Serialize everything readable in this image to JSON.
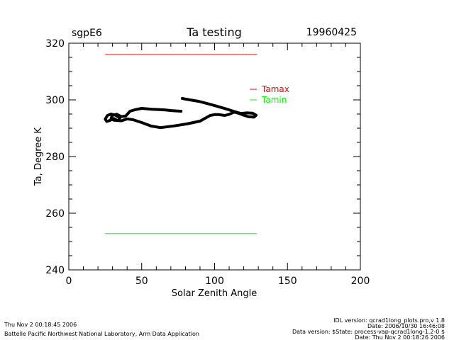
{
  "header": {
    "site": "sgpE6",
    "date": "19960425"
  },
  "footer": {
    "timestamp": "Thu Nov  2 00:18:45 2006",
    "org": "Battelle Pacific Northwest National Laboratory, Arm Data Application",
    "idl_version": "IDL version: qcrad1long_plots.pro,v 1.8",
    "idl_date": "Date: 2006/10/30 16:46:08",
    "data_version": "Data version: $State: process-vap-qcrad1long-1.2-0 $",
    "data_date": "Date: Thu Nov  2 00:18:26 2006"
  },
  "chart_data": {
    "type": "line",
    "title": "Ta testing",
    "xlabel": "Solar Zenith Angle",
    "ylabel": "Ta, Degree K",
    "xlim": [
      0,
      200
    ],
    "ylim": [
      240,
      320
    ],
    "xticks": [
      "0",
      "50",
      "100",
      "150",
      "200"
    ],
    "yticks": [
      "240",
      "260",
      "280",
      "300",
      "320"
    ],
    "legend_placement": "top-right",
    "colors": {
      "tamax": "#ff0000",
      "tamin": "#00ff00",
      "ta": "#000000"
    },
    "series": [
      {
        "name": "Tamax",
        "x": [
          25,
          129
        ],
        "y": [
          316,
          316
        ]
      },
      {
        "name": "Tamin",
        "x": [
          25,
          129
        ],
        "y": [
          252.8,
          252.8
        ]
      },
      {
        "name": "Ta",
        "x": [
          77.8,
          83,
          89,
          95,
          102,
          108,
          113.4,
          118,
          122,
          126,
          128.5,
          127,
          123,
          120,
          117,
          113.4,
          110,
          107,
          103,
          100,
          97,
          90,
          80.8,
          72,
          63,
          56.5,
          50,
          44,
          40,
          36,
          33,
          31,
          28,
          26,
          25,
          26.5,
          29,
          32,
          35,
          34,
          31,
          29,
          30,
          33,
          36,
          39,
          42,
          46,
          50,
          57,
          65,
          71,
          77
        ],
        "y": [
          300.5,
          300,
          299.5,
          298.7,
          297.7,
          296.8,
          295.9,
          295.2,
          295.4,
          295.3,
          294.6,
          293.9,
          294.1,
          294.6,
          295.2,
          295.7,
          294.9,
          294.5,
          294.8,
          294.8,
          294.5,
          292.5,
          291.5,
          290.8,
          290.2,
          290.75,
          292,
          293,
          293.3,
          292.6,
          292.8,
          293.4,
          292.7,
          292.4,
          293.2,
          294.5,
          295,
          294.6,
          293.6,
          292.7,
          292.8,
          293.5,
          294.6,
          294.9,
          294.1,
          294.3,
          296,
          296.6,
          297,
          296.7,
          296.5,
          296.2,
          296
        ]
      }
    ]
  }
}
